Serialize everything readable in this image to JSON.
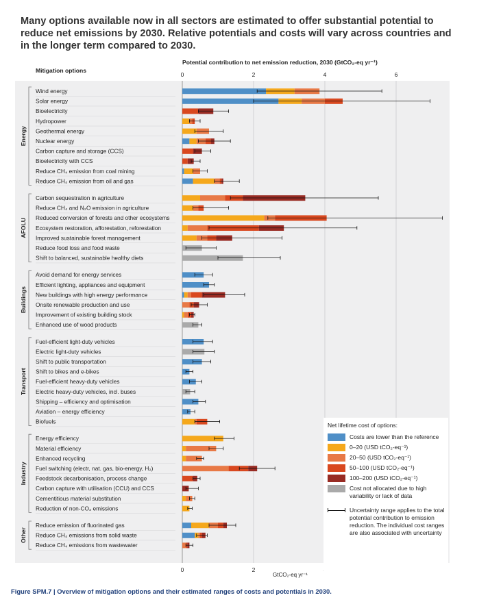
{
  "headline": "Many options available now in all sectors are estimated to offer substantial potential to reduce net emissions by 2030. Relative potentials and costs will vary across countries and in the longer term compared to 2030.",
  "caption": "Figure SPM.7 | Overview of mitigation options and their estimated ranges of costs and potentials in 2030.",
  "chart_data": {
    "type": "bar",
    "stacked": true,
    "orientation": "horizontal",
    "title": "Potential contribution to net emission reduction, 2030 (GtCO₂-eq yr⁻¹)",
    "row_header": "Mitigation options",
    "xlabel_bottom": "GtCO₂-eq yr⁻¹",
    "xlim": [
      0,
      7
    ],
    "xticks": [
      "0",
      "2",
      "4",
      "6"
    ],
    "grid": true,
    "colors": {
      "lower": "#4f8fc7",
      "c0_20": "#f5a81c",
      "c20_50": "#e87946",
      "c50_100": "#d9481f",
      "c100_200": "#982b23",
      "na": "#aaaaaa"
    },
    "legend": {
      "title": "Net lifetime cost of options:",
      "items": [
        {
          "key": "lower",
          "label": "Costs are lower than the reference"
        },
        {
          "key": "c0_20",
          "label": "0–20 (USD tCO₂-eq⁻¹)"
        },
        {
          "key": "c20_50",
          "label": "20–50 (USD tCO₂-eq⁻¹)"
        },
        {
          "key": "c50_100",
          "label": "50–100 (USD tCO₂-eq⁻¹)"
        },
        {
          "key": "c100_200",
          "label": "100–200 (USD tCO₂-eq⁻¹)"
        },
        {
          "key": "na",
          "label": "Cost not allocated due to high variability or lack of data"
        }
      ],
      "uncertainty": "Uncertainty range applies to the total potential contribution to emission reduction. The individual cost ranges are also associated with uncertainty"
    },
    "groups": [
      {
        "name": "Energy",
        "rows": [
          {
            "label": "Wind energy",
            "segments": {
              "lower": 2.35,
              "c0_20": 0.8,
              "c20_50": 0.7
            },
            "error": [
              2.1,
              5.6
            ]
          },
          {
            "label": "Solar energy",
            "segments": {
              "lower": 2.7,
              "c0_20": 0.65,
              "c20_50": 0.65,
              "c50_100": 0.5
            },
            "error": [
              2.0,
              6.95
            ]
          },
          {
            "label": "Bioelectricity",
            "segments": {
              "c50_100": 0.45,
              "c100_200": 0.42
            },
            "error": [
              0.45,
              1.3
            ]
          },
          {
            "label": "Hydropower",
            "segments": {
              "c0_20": 0.2,
              "c20_50": 0.08,
              "c50_100": 0.07
            },
            "error": [
              0.2,
              0.5
            ]
          },
          {
            "label": "Geothermal energy",
            "segments": {
              "c0_20": 0.4,
              "c20_50": 0.35
            },
            "error": [
              0.35,
              1.15
            ]
          },
          {
            "label": "Nuclear energy",
            "segments": {
              "lower": 0.2,
              "c0_20": 0.2,
              "c20_50": 0.25,
              "c50_100": 0.15,
              "c100_200": 0.1
            },
            "error": [
              0.45,
              1.35
            ]
          },
          {
            "label": "Carbon capture and storage (CCS)",
            "segments": {
              "c50_100": 0.3,
              "c100_200": 0.25
            },
            "error": [
              0.35,
              0.8
            ]
          },
          {
            "label": "Bioelectricity with CCS",
            "segments": {
              "c50_100": 0.15,
              "c100_200": 0.17
            },
            "error": [
              0.25,
              0.5
            ]
          },
          {
            "label": "Reduce CH₄ emission from coal mining",
            "segments": {
              "lower": 0.05,
              "c0_20": 0.25,
              "c20_50": 0.2
            },
            "error": [
              0.3,
              0.7
            ]
          },
          {
            "label": "Reduce CH₄ emission from oil and gas",
            "segments": {
              "lower": 0.3,
              "c0_20": 0.6,
              "c20_50": 0.15,
              "c50_100": 0.05,
              "c100_200": 0.05
            },
            "error": [
              0.9,
              1.6
            ]
          }
        ]
      },
      {
        "name": "AFOLU",
        "rows": [
          {
            "label": "Carbon sequestration in agriculture",
            "segments": {
              "c0_20": 0.5,
              "c20_50": 0.7,
              "c50_100": 0.5,
              "c100_200": 1.75
            },
            "error": [
              1.35,
              5.5
            ]
          },
          {
            "label": "Reduce CH₄ and N₂O emission in agriculture",
            "segments": {
              "c0_20": 0.3,
              "c20_50": 0.15,
              "c50_100": 0.15
            },
            "error": [
              0.3,
              1.3
            ]
          },
          {
            "label": "Reduced conversion of forests and other ecosystems",
            "segments": {
              "c0_20": 2.3,
              "c20_50": 0.3,
              "c50_100": 1.45
            },
            "error": [
              2.4,
              7.3
            ]
          },
          {
            "label": "Ecosystem restoration, afforestation, reforestation",
            "segments": {
              "c0_20": 0.15,
              "c20_50": 0.55,
              "c50_100": 1.45,
              "c100_200": 0.7
            },
            "error": [
              0.75,
              4.9
            ]
          },
          {
            "label": "Improved sustainable forest management",
            "segments": {
              "c0_20": 0.4,
              "c20_50": 0.3,
              "c50_100": 0.25,
              "c100_200": 0.45
            },
            "error": [
              0.55,
              2.8
            ]
          },
          {
            "label": "Reduce food loss and food waste",
            "segments": {
              "na": 0.55
            },
            "error": [
              0.1,
              0.95
            ]
          },
          {
            "label": "Shift to balanced, sustainable healthy diets",
            "segments": {
              "na": 1.7
            },
            "error": [
              1.0,
              2.75
            ]
          }
        ]
      },
      {
        "name": "Buildings",
        "rows": [
          {
            "label": "Avoid demand for energy services",
            "segments": {
              "lower": 0.6
            },
            "error": [
              0.35,
              0.85
            ]
          },
          {
            "label": "Efficient lighting, appliances and equipment",
            "segments": {
              "lower": 0.75
            },
            "error": [
              0.6,
              0.9
            ]
          },
          {
            "label": "New buildings with high energy performance",
            "segments": {
              "lower": 0.05,
              "c0_20": 0.1,
              "c20_50": 0.1,
              "c50_100": 0.3,
              "c100_200": 0.65
            },
            "error": [
              0.6,
              1.75
            ]
          },
          {
            "label": "Onsite renewable production and use",
            "segments": {
              "c20_50": 0.2,
              "c50_100": 0.12,
              "c100_200": 0.15
            },
            "error": [
              0.25,
              0.7
            ]
          },
          {
            "label": "Improvement of existing building stock",
            "segments": {
              "c0_20": 0.05,
              "c20_50": 0.1,
              "c50_100": 0.1,
              "c100_200": 0.07
            },
            "error": [
              0.2,
              0.35
            ]
          },
          {
            "label": "Enhanced use of wood products",
            "segments": {
              "na": 0.45
            },
            "error": [
              0.3,
              0.55
            ]
          }
        ]
      },
      {
        "name": "Transport",
        "rows": [
          {
            "label": "Fuel-efficient light-duty vehicles",
            "segments": {
              "lower": 0.6
            },
            "error": [
              0.3,
              0.85
            ]
          },
          {
            "label": "Electric light-duty vehicles",
            "segments": {
              "na": 0.62
            },
            "error": [
              0.3,
              0.9
            ]
          },
          {
            "label": "Shift to public transportation",
            "segments": {
              "lower": 0.55
            },
            "error": [
              0.3,
              0.8
            ]
          },
          {
            "label": "Shift to bikes and e-bikes",
            "segments": {
              "lower": 0.2
            },
            "error": [
              0.1,
              0.3
            ]
          },
          {
            "label": "Fuel-efficient heavy-duty vehicles",
            "segments": {
              "lower": 0.38
            },
            "error": [
              0.2,
              0.55
            ]
          },
          {
            "label": "Electric heavy-duty vehicles, incl. buses",
            "segments": {
              "na": 0.22
            },
            "error": [
              0.1,
              0.35
            ]
          },
          {
            "label": "Shipping – efficiency and optimisation",
            "segments": {
              "lower": 0.45
            },
            "error": [
              0.3,
              0.65
            ]
          },
          {
            "label": "Aviation – energy efficiency",
            "segments": {
              "lower": 0.23
            },
            "error": [
              0.15,
              0.35
            ]
          },
          {
            "label": "Biofuels",
            "segments": {
              "c0_20": 0.35,
              "c20_50": 0.05,
              "c50_100": 0.3
            },
            "error": [
              0.35,
              1.05
            ]
          }
        ]
      },
      {
        "name": "Industry",
        "rows": [
          {
            "label": "Energy efficiency",
            "segments": {
              "c0_20": 1.15
            },
            "error": [
              0.9,
              1.45
            ]
          },
          {
            "label": "Material efficiency",
            "segments": {
              "c0_20": 0.1,
              "c20_50": 0.85
            },
            "error": [
              0.75,
              1.15
            ]
          },
          {
            "label": "Enhanced recycling",
            "segments": {
              "c0_20": 0.1,
              "c20_50": 0.45
            },
            "error": [
              0.4,
              0.6
            ]
          },
          {
            "label": "Fuel switching (electr, nat. gas, bio-energy, H₂)",
            "segments": {
              "c20_50": 1.3,
              "c50_100": 0.55,
              "c100_200": 0.25
            },
            "error": [
              1.6,
              2.6
            ]
          },
          {
            "label": "Feedstock decarbonisation, process change",
            "segments": {
              "c50_100": 0.3,
              "c100_200": 0.12
            },
            "error": [
              0.3,
              0.5
            ]
          },
          {
            "label": "Carbon capture with utilisation (CCU) and CCS",
            "segments": {
              "c100_200": 0.18
            },
            "error": [
              0.1,
              0.45
            ]
          },
          {
            "label": "Cementitious material substitution",
            "segments": {
              "c0_20": 0.1,
              "c20_50": 0.18
            },
            "error": [
              0.2,
              0.35
            ]
          },
          {
            "label": "Reduction of non-CO₂ emissions",
            "segments": {
              "c0_20": 0.2
            },
            "error": [
              0.15,
              0.28
            ]
          }
        ]
      },
      {
        "name": "Other",
        "rows": [
          {
            "label": "Reduce emission of fluorinated gas",
            "segments": {
              "lower": 0.25,
              "c0_20": 0.5,
              "c20_50": 0.25,
              "c50_100": 0.15,
              "c100_200": 0.1
            },
            "error": [
              0.75,
              1.5
            ]
          },
          {
            "label": "Reduce CH₄ emissions from solid waste",
            "segments": {
              "lower": 0.35,
              "c0_20": 0.1,
              "c20_50": 0.05,
              "c50_100": 0.05,
              "c100_200": 0.1
            },
            "error": [
              0.4,
              0.7
            ]
          },
          {
            "label": "Reduce CH₄ emissions from wastewater",
            "segments": {
              "c20_50": 0.1,
              "c50_100": 0.04,
              "c100_200": 0.06
            },
            "error": [
              0.1,
              0.3
            ]
          }
        ]
      }
    ]
  }
}
